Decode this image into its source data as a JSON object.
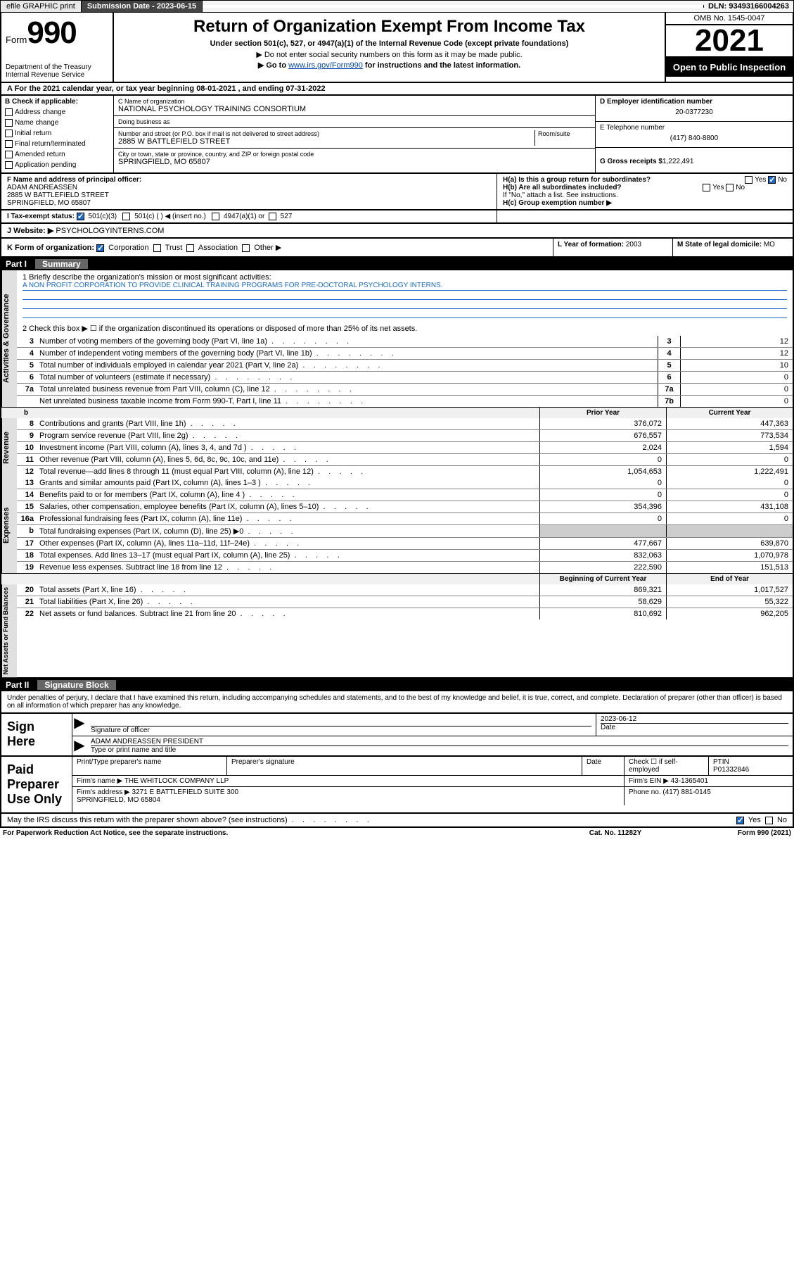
{
  "topbar": {
    "efile": "efile GRAPHIC print",
    "submission_label": "Submission Date - 2023-06-15",
    "dln": "DLN: 93493166004263"
  },
  "header": {
    "form_prefix": "Form",
    "form_num": "990",
    "dept": "Department of the Treasury\nInternal Revenue Service",
    "title": "Return of Organization Exempt From Income Tax",
    "sub1": "Under section 501(c), 527, or 4947(a)(1) of the Internal Revenue Code (except private foundations)",
    "sub2": "▶ Do not enter social security numbers on this form as it may be made public.",
    "sub3_prefix": "▶ Go to ",
    "sub3_link": "www.irs.gov/Form990",
    "sub3_suffix": " for instructions and the latest information.",
    "omb": "OMB No. 1545-0047",
    "year": "2021",
    "open": "Open to Public Inspection"
  },
  "row_a": "A For the 2021 calendar year, or tax year beginning 08-01-2021   , and ending 07-31-2022",
  "col_b": {
    "hdr": "B Check if applicable:",
    "items": [
      "Address change",
      "Name change",
      "Initial return",
      "Final return/terminated",
      "Amended return",
      "Application pending"
    ]
  },
  "col_c": {
    "name_lab": "C Name of organization",
    "name": "NATIONAL PSYCHOLOGY TRAINING CONSORTIUM",
    "dba_lab": "Doing business as",
    "dba": "",
    "addr_lab": "Number and street (or P.O. box if mail is not delivered to street address)",
    "room_lab": "Room/suite",
    "addr": "2885 W BATTLEFIELD STREET",
    "city_lab": "City or town, state or province, country, and ZIP or foreign postal code",
    "city": "SPRINGFIELD, MO  65807"
  },
  "col_d": {
    "ein_lab": "D Employer identification number",
    "ein": "20-0377230",
    "tel_lab": "E Telephone number",
    "tel": "(417) 840-8800",
    "gross_lab": "G Gross receipts $",
    "gross": "1,222,491"
  },
  "row_f": {
    "f_lab": "F Name and address of principal officer:",
    "f_name": "ADAM ANDREASSEN",
    "f_addr": "2885 W BATTLEFIELD STREET\nSPRINGFIELD, MO  65807",
    "ha": "H(a)  Is this a group return for subordinates?",
    "hb": "H(b)  Are all subordinates included?",
    "hb_note": "If \"No,\" attach a list. See instructions.",
    "hc": "H(c)  Group exemption number ▶",
    "yes": "Yes",
    "no": "No"
  },
  "row_i": {
    "lab": "I  Tax-exempt status:",
    "o1": "501(c)(3)",
    "o2": "501(c) (  ) ◀ (insert no.)",
    "o3": "4947(a)(1) or",
    "o4": "527"
  },
  "row_j": {
    "lab": "J  Website: ▶",
    "val": "PSYCHOLOGYINTERNS.COM"
  },
  "row_k": {
    "lab": "K Form of organization:",
    "o1": "Corporation",
    "o2": "Trust",
    "o3": "Association",
    "o4": "Other ▶",
    "l_lab": "L Year of formation:",
    "l_val": "2003",
    "m_lab": "M State of legal domicile:",
    "m_val": "MO"
  },
  "part1": {
    "num": "Part I",
    "title": "Summary"
  },
  "mission": {
    "q1": "1  Briefly describe the organization's mission or most significant activities:",
    "text": "A NON PROFIT CORPORATION TO PROVIDE CLINICAL TRAINING PROGRAMS FOR PRE-DOCTORAL PSYCHOLOGY INTERNS.",
    "q2": "2  Check this box ▶ ☐  if the organization discontinued its operations or disposed of more than 25% of its net assets."
  },
  "gov_lines": [
    {
      "n": "3",
      "t": "Number of voting members of the governing body (Part VI, line 1a)",
      "box": "3",
      "v": "12"
    },
    {
      "n": "4",
      "t": "Number of independent voting members of the governing body (Part VI, line 1b)",
      "box": "4",
      "v": "12"
    },
    {
      "n": "5",
      "t": "Total number of individuals employed in calendar year 2021 (Part V, line 2a)",
      "box": "5",
      "v": "10"
    },
    {
      "n": "6",
      "t": "Total number of volunteers (estimate if necessary)",
      "box": "6",
      "v": "0"
    },
    {
      "n": "7a",
      "t": "Total unrelated business revenue from Part VIII, column (C), line 12",
      "box": "7a",
      "v": "0"
    },
    {
      "n": "",
      "t": "Net unrelated business taxable income from Form 990-T, Part I, line 11",
      "box": "7b",
      "v": "0"
    }
  ],
  "col_hdrs": {
    "b": "b",
    "prior": "Prior Year",
    "current": "Current Year",
    "boy": "Beginning of Current Year",
    "eoy": "End of Year"
  },
  "rev_lines": [
    {
      "n": "8",
      "t": "Contributions and grants (Part VIII, line 1h)",
      "p": "376,072",
      "c": "447,363"
    },
    {
      "n": "9",
      "t": "Program service revenue (Part VIII, line 2g)",
      "p": "676,557",
      "c": "773,534"
    },
    {
      "n": "10",
      "t": "Investment income (Part VIII, column (A), lines 3, 4, and 7d )",
      "p": "2,024",
      "c": "1,594"
    },
    {
      "n": "11",
      "t": "Other revenue (Part VIII, column (A), lines 5, 6d, 8c, 9c, 10c, and 11e)",
      "p": "0",
      "c": "0"
    },
    {
      "n": "12",
      "t": "Total revenue—add lines 8 through 11 (must equal Part VIII, column (A), line 12)",
      "p": "1,054,653",
      "c": "1,222,491"
    }
  ],
  "exp_lines": [
    {
      "n": "13",
      "t": "Grants and similar amounts paid (Part IX, column (A), lines 1–3 )",
      "p": "0",
      "c": "0"
    },
    {
      "n": "14",
      "t": "Benefits paid to or for members (Part IX, column (A), line 4 )",
      "p": "0",
      "c": "0"
    },
    {
      "n": "15",
      "t": "Salaries, other compensation, employee benefits (Part IX, column (A), lines 5–10)",
      "p": "354,396",
      "c": "431,108"
    },
    {
      "n": "16a",
      "t": "Professional fundraising fees (Part IX, column (A), line 11e)",
      "p": "0",
      "c": "0"
    },
    {
      "n": "b",
      "t": "Total fundraising expenses (Part IX, column (D), line 25) ▶0",
      "p": "",
      "c": "",
      "shade": true
    },
    {
      "n": "17",
      "t": "Other expenses (Part IX, column (A), lines 11a–11d, 11f–24e)",
      "p": "477,667",
      "c": "639,870"
    },
    {
      "n": "18",
      "t": "Total expenses. Add lines 13–17 (must equal Part IX, column (A), line 25)",
      "p": "832,063",
      "c": "1,070,978"
    },
    {
      "n": "19",
      "t": "Revenue less expenses. Subtract line 18 from line 12",
      "p": "222,590",
      "c": "151,513"
    }
  ],
  "net_lines": [
    {
      "n": "20",
      "t": "Total assets (Part X, line 16)",
      "p": "869,321",
      "c": "1,017,527"
    },
    {
      "n": "21",
      "t": "Total liabilities (Part X, line 26)",
      "p": "58,629",
      "c": "55,322"
    },
    {
      "n": "22",
      "t": "Net assets or fund balances. Subtract line 21 from line 20",
      "p": "810,692",
      "c": "962,205"
    }
  ],
  "vlabels": {
    "gov": "Activities & Governance",
    "rev": "Revenue",
    "exp": "Expenses",
    "net": "Net Assets or Fund Balances"
  },
  "part2": {
    "num": "Part II",
    "title": "Signature Block"
  },
  "sig": {
    "decl": "Under penalties of perjury, I declare that I have examined this return, including accompanying schedules and statements, and to the best of my knowledge and belief, it is true, correct, and complete. Declaration of preparer (other than officer) is based on all information of which preparer has any knowledge.",
    "sign_here": "Sign Here",
    "sig_officer": "Signature of officer",
    "date_lab": "Date",
    "date": "2023-06-12",
    "name": "ADAM ANDREASSEN PRESIDENT",
    "name_lab": "Type or print name and title",
    "paid": "Paid Preparer Use Only",
    "prep_name_lab": "Print/Type preparer's name",
    "prep_sig_lab": "Preparer's signature",
    "check_self": "Check ☐ if self-employed",
    "ptin_lab": "PTIN",
    "ptin": "P01332846",
    "firm_name_lab": "Firm's name    ▶",
    "firm_name": "THE WHITLOCK COMPANY LLP",
    "firm_ein_lab": "Firm's EIN ▶",
    "firm_ein": "43-1365401",
    "firm_addr_lab": "Firm's address ▶",
    "firm_addr": "3271 E BATTLEFIELD SUITE 300\nSPRINGFIELD, MO  65804",
    "phone_lab": "Phone no.",
    "phone": "(417) 881-0145",
    "discuss": "May the IRS discuss this return with the preparer shown above? (see instructions)"
  },
  "footer": {
    "l": "For Paperwork Reduction Act Notice, see the separate instructions.",
    "m": "Cat. No. 11282Y",
    "r": "Form 990 (2021)"
  }
}
